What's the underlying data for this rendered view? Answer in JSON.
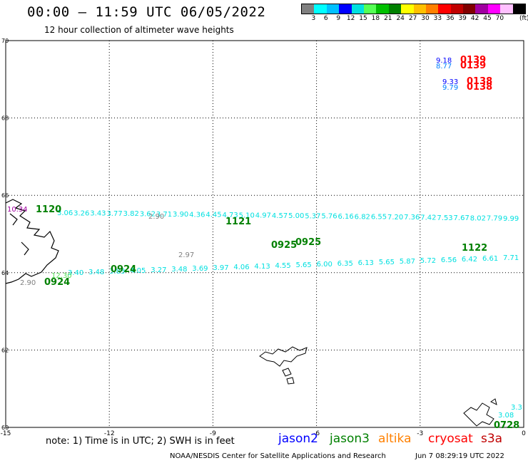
{
  "header": {
    "title": "00:00 – 11:59 UTC 06/05/2022",
    "subtitle": "12 hour collection of altimeter wave heights"
  },
  "legend": {
    "colors": [
      "#808080",
      "#00ffff",
      "#00c0ff",
      "#0000ff",
      "#00e0e0",
      "#55ff55",
      "#00c000",
      "#008000",
      "#ffff00",
      "#ffc000",
      "#ff8000",
      "#ff0000",
      "#c00000",
      "#800000",
      "#a000a0",
      "#ff00ff",
      "#ffc0ff",
      "#000000"
    ],
    "labels": [
      "3",
      "6",
      "9",
      "12",
      "15",
      "18",
      "21",
      "24",
      "27",
      "30",
      "33",
      "36",
      "39",
      "42",
      "45",
      "70"
    ],
    "unit": "(ft)"
  },
  "map": {
    "lon_ticks": [
      "-15",
      "-12",
      "-9",
      "-6",
      "-3",
      "0"
    ],
    "lat_ticks": [
      "70",
      "68",
      "66",
      "64",
      "62",
      "60"
    ],
    "lon_range": [
      -15,
      0
    ],
    "lat_range": [
      60,
      70
    ],
    "grid": "dotted"
  },
  "tracks": {
    "upper": {
      "color": "#00e0e0",
      "values": [
        "3.06",
        "3.26",
        "3.43",
        "3.77",
        "3.82",
        "3.62",
        "3.71",
        "3.90",
        "4.36",
        "4.45",
        "4.73",
        "5.10",
        "4.97",
        "4.57",
        "5.00",
        "5.37",
        "5.76",
        "6.16",
        "6.82",
        "6.55",
        "7.20",
        "7.36",
        "7.42",
        "7.53",
        "7.67",
        "8.02",
        "7.79",
        "9.99"
      ]
    },
    "lower": {
      "color": "#00e0e0",
      "values": [
        "3.40",
        "3.48",
        "3.83",
        "4.05",
        "3.27",
        "3.48",
        "3.69",
        "3.97",
        "4.06",
        "4.13",
        "4.55",
        "5.65",
        "6.00",
        "6.35",
        "6.13",
        "5.65",
        "5.87",
        "5.72",
        "6.56",
        "6.42",
        "6.61",
        "7.71"
      ]
    },
    "low_values": [
      {
        "text": "10.34",
        "color": "#a000a0"
      },
      {
        "text": "2.90",
        "color": "#808080"
      },
      {
        "text": "2.97",
        "color": "#808080"
      },
      {
        "text": "2.90",
        "color": "#808080"
      },
      {
        "text": "12.30",
        "color": "#55dd55"
      }
    ],
    "time_labels": [
      {
        "text": "1120",
        "color": "#008000"
      },
      {
        "text": "1121",
        "color": "#008000"
      },
      {
        "text": "0925",
        "color": "#008000"
      },
      {
        "text": "0925",
        "color": "#008000"
      },
      {
        "text": "0924",
        "color": "#008000"
      },
      {
        "text": "0924",
        "color": "#008000"
      },
      {
        "text": "1122",
        "color": "#008000"
      },
      {
        "text": "0728",
        "color": "#008000"
      }
    ],
    "corner_values": [
      {
        "text": "3.08",
        "color": "#00e0e0"
      },
      {
        "text": "3.3",
        "color": "#00e0e0"
      }
    ],
    "cryosat_marks": [
      {
        "value": "9.18",
        "value2": "8.77",
        "time": "0139",
        "time2": "0139"
      },
      {
        "value": "9.33",
        "value2": "9.79",
        "time": "0138",
        "time2": "0138"
      }
    ]
  },
  "footer": {
    "note": "note: 1) Time is in UTC; 2) SWH is in feet",
    "satellites": [
      {
        "name": "jason2",
        "color": "#0000ff"
      },
      {
        "name": "jason3",
        "color": "#008000"
      },
      {
        "name": "altika",
        "color": "#ff8000"
      },
      {
        "name": "cryosat",
        "color": "#ff0000"
      },
      {
        "name": "s3a",
        "color": "#c00000"
      }
    ],
    "credit": "NOAA/NESDIS Center for Satellite Applications and Research",
    "timestamp": "Jun  7 08:29:19 UTC 2022"
  }
}
